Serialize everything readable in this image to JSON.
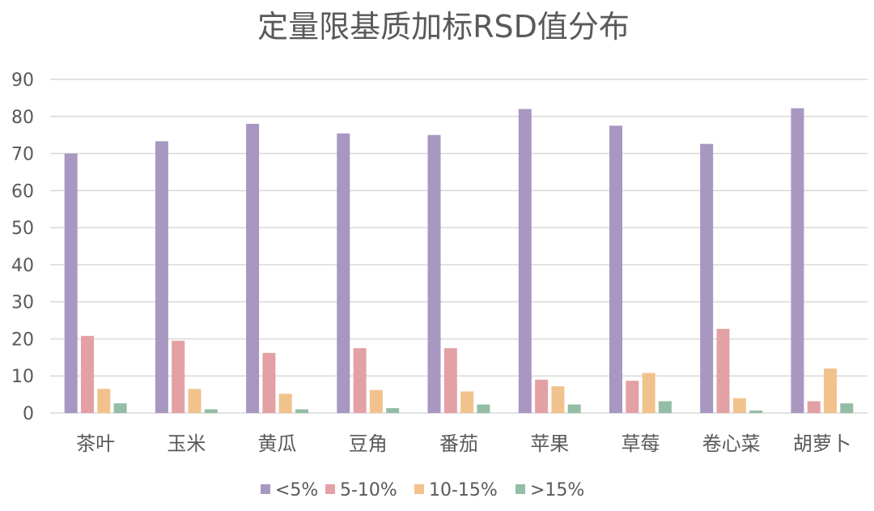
{
  "chart_data": {
    "type": "bar",
    "title": "定量限基质加标RSD值分布",
    "categories": [
      "茶叶",
      "玉米",
      "黄瓜",
      "豆角",
      "番茄",
      "苹果",
      "草莓",
      "卷心菜",
      "胡萝卜"
    ],
    "ylim": [
      0,
      90
    ],
    "yticks": [
      0,
      10,
      20,
      30,
      40,
      50,
      60,
      70,
      80,
      90
    ],
    "grid": true,
    "legend_position": "bottom",
    "series": [
      {
        "name": "<5%",
        "color": "#a797c1",
        "values": [
          70,
          73.3,
          78,
          75.4,
          75,
          82,
          77.5,
          72.6,
          82.2
        ]
      },
      {
        "name": "5-10%",
        "color": "#e3a1a5",
        "values": [
          20.8,
          19.5,
          16.2,
          17.5,
          17.5,
          9.0,
          8.7,
          22.7,
          3.2
        ]
      },
      {
        "name": "10-15%",
        "color": "#f2c28c",
        "values": [
          6.5,
          6.5,
          5.2,
          6.2,
          5.8,
          7.2,
          10.8,
          4.0,
          12.0
        ]
      },
      {
        "name": ">15%",
        "color": "#94bda5",
        "values": [
          2.6,
          1.0,
          1.0,
          1.3,
          2.3,
          2.3,
          3.2,
          0.7,
          2.6
        ]
      }
    ]
  }
}
